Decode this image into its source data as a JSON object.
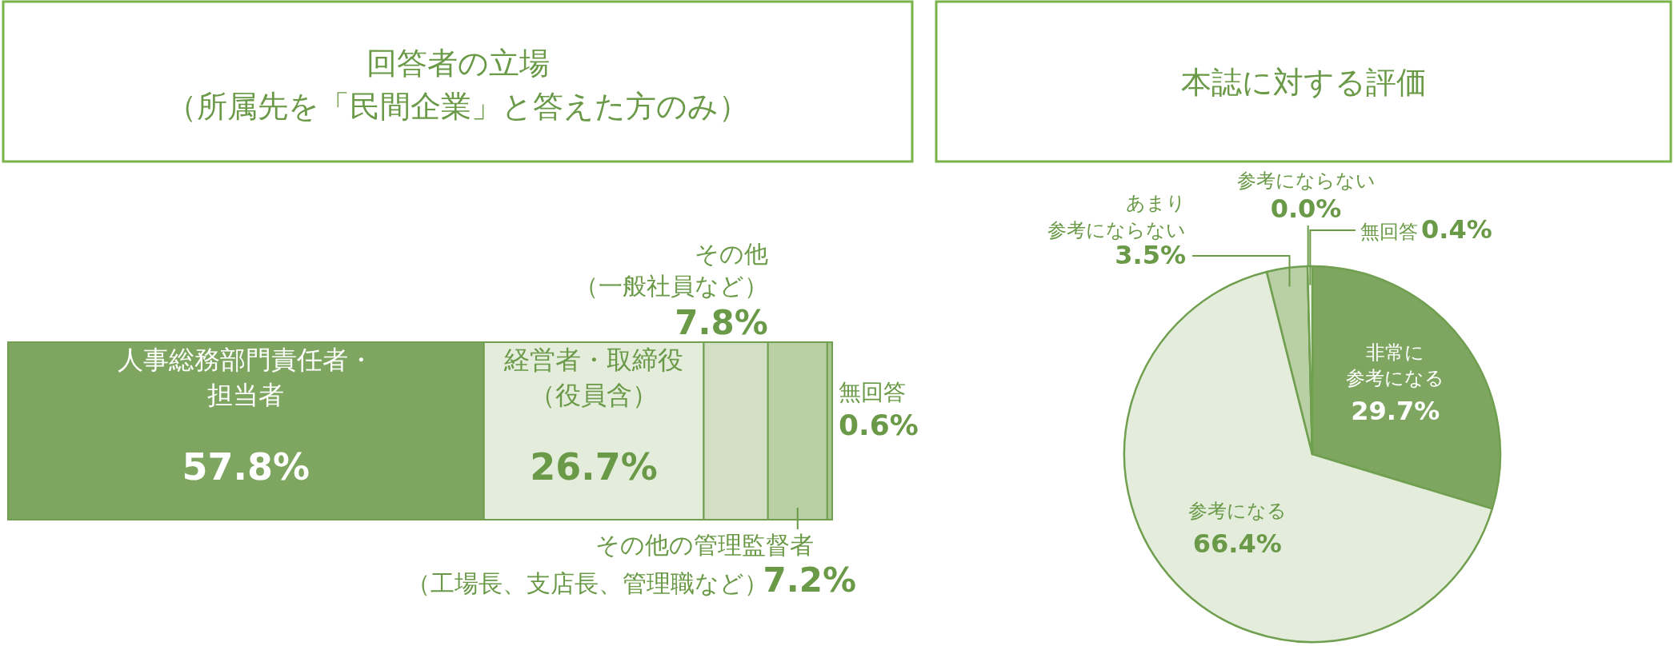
{
  "chart_data": [
    {
      "type": "bar",
      "stacked": true,
      "orientation": "horizontal",
      "title": "回答者の立場（所属先を「民間企業」と答えた方のみ）",
      "categories": [
        null
      ],
      "series": [
        {
          "name": "人事総務部門責任者・担当者",
          "color": "#7ea660",
          "values": [
            57.8
          ],
          "value_labels": [
            "57.8%"
          ]
        },
        {
          "name": "経営者・取締役（役員含）",
          "color": "#e4ecdc",
          "values": [
            26.7
          ],
          "value_labels": [
            "26.7%"
          ]
        },
        {
          "name": "その他（一般社員など）",
          "color": "#d2dfc4",
          "values": [
            7.8
          ],
          "value_labels": [
            "7.8%"
          ]
        },
        {
          "name": "その他の管理監督者（工場長、支店長、管理職など）",
          "color": "#b9d0a5",
          "values": [
            7.2
          ],
          "value_labels": [
            "7.2%"
          ]
        },
        {
          "name": "無回答",
          "color": "#a9c58f",
          "values": [
            0.6
          ],
          "value_labels": [
            "0.6%"
          ]
        }
      ]
    },
    {
      "type": "pie",
      "title": "本誌に対する評価",
      "categories": [
        "非常に参考になる",
        "参考になる",
        "あまり参考にならない",
        "参考にならない",
        "無回答"
      ],
      "values": [
        29.7,
        66.4,
        3.5,
        0.0,
        0.4
      ],
      "value_labels": [
        "29.7%",
        "66.4%",
        "3.5%",
        "0.0%",
        "0.4%"
      ],
      "colors": [
        "#7ea660",
        "#e4ecdc",
        "#b9d0a5",
        "#ffffff",
        "#f4f8f0"
      ]
    }
  ]
}
